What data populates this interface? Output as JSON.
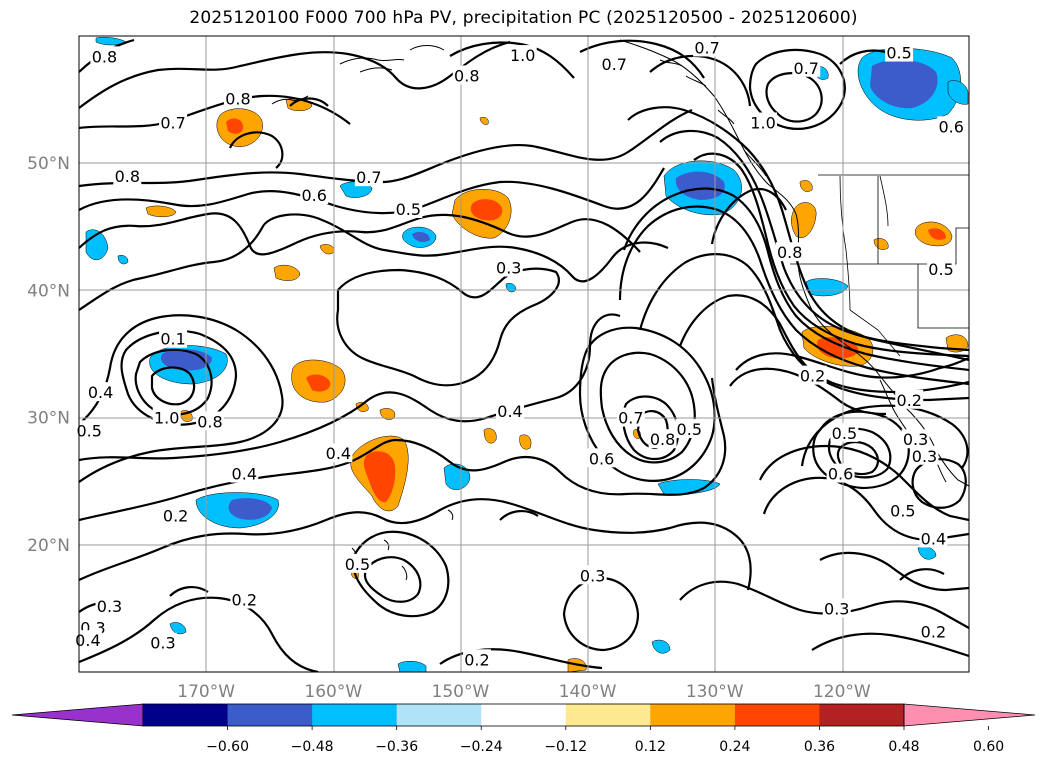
{
  "title": "2025120100 F000 700 hPa PV, precipitation PC (2025120500 - 2025120600)",
  "lat_labels": [
    {
      "text": "50°N",
      "lat": 50
    },
    {
      "text": "40°N",
      "lat": 40
    },
    {
      "text": "30°N",
      "lat": 30
    },
    {
      "text": "20°N",
      "lat": 20
    }
  ],
  "lon_labels": [
    {
      "text": "170°W",
      "lon": -170
    },
    {
      "text": "160°W",
      "lon": -160
    },
    {
      "text": "150°W",
      "lon": -150
    },
    {
      "text": "140°W",
      "lon": -140
    },
    {
      "text": "130°W",
      "lon": -130
    },
    {
      "text": "120°W",
      "lon": -120
    }
  ],
  "colorbar": {
    "ticks": [
      "−0.60",
      "−0.48",
      "−0.36",
      "−0.24",
      "−0.12",
      "0.12",
      "0.24",
      "0.36",
      "0.48",
      "0.60"
    ],
    "colors": [
      "#9932cc",
      "#00008b",
      "#3d5ccc",
      "#00bfff",
      "#aee3f8",
      "#ffffff",
      "#fde98f",
      "#ffa500",
      "#ff4500",
      "#b22222",
      "#ff8fb1"
    ]
  },
  "contour_labels": [
    {
      "text": "0.8",
      "lon": -178,
      "lat": 58.4
    },
    {
      "text": "0.8",
      "lon": -167.5,
      "lat": 55.1
    },
    {
      "text": "0.7",
      "lon": -172.6,
      "lat": 53.2
    },
    {
      "text": "0.8",
      "lon": -176.2,
      "lat": 49.0
    },
    {
      "text": "0.7",
      "lon": -157.2,
      "lat": 48.9
    },
    {
      "text": "0.6",
      "lon": -161.5,
      "lat": 47.5
    },
    {
      "text": "0.5",
      "lon": -154.1,
      "lat": 46.4
    },
    {
      "text": "0.8",
      "lon": -149.5,
      "lat": 56.9
    },
    {
      "text": "1.0",
      "lon": -145.1,
      "lat": 58.5
    },
    {
      "text": "0.7",
      "lon": -137.9,
      "lat": 57.8
    },
    {
      "text": "0.7",
      "lon": -130.6,
      "lat": 59.1
    },
    {
      "text": "0.7",
      "lon": -122.8,
      "lat": 57.5
    },
    {
      "text": "1.0",
      "lon": -126.2,
      "lat": 53.2
    },
    {
      "text": "0.5",
      "lon": -115.5,
      "lat": 58.7
    },
    {
      "text": "0.6",
      "lon": -111.4,
      "lat": 52.9
    },
    {
      "text": "0.8",
      "lon": -124.1,
      "lat": 43.0
    },
    {
      "text": "0.5",
      "lon": -112.2,
      "lat": 41.7
    },
    {
      "text": "0.3",
      "lon": -146.2,
      "lat": 41.8
    },
    {
      "text": "0.1",
      "lon": -172.6,
      "lat": 36.2
    },
    {
      "text": "0.4",
      "lon": -178.3,
      "lat": 32.0
    },
    {
      "text": "0.5",
      "lon": -179.2,
      "lat": 29.0
    },
    {
      "text": "1.0",
      "lon": -173.1,
      "lat": 30.0
    },
    {
      "text": "0.8",
      "lon": -169.7,
      "lat": 29.7
    },
    {
      "text": "0.4",
      "lon": -167.0,
      "lat": 25.6
    },
    {
      "text": "0.2",
      "lon": -172.4,
      "lat": 22.3
    },
    {
      "text": "0.4",
      "lon": -159.6,
      "lat": 27.2
    },
    {
      "text": "0.4",
      "lon": -146.1,
      "lat": 30.5
    },
    {
      "text": "0.7",
      "lon": -136.6,
      "lat": 30.0
    },
    {
      "text": "0.8",
      "lon": -134.1,
      "lat": 28.3
    },
    {
      "text": "0.6",
      "lon": -138.9,
      "lat": 26.8
    },
    {
      "text": "0.5",
      "lon": -132.0,
      "lat": 29.1
    },
    {
      "text": "0.2",
      "lon": -122.3,
      "lat": 33.3
    },
    {
      "text": "0.5",
      "lon": -119.8,
      "lat": 28.8
    },
    {
      "text": "0.6",
      "lon": -120.1,
      "lat": 25.6
    },
    {
      "text": "0.2",
      "lon": -114.7,
      "lat": 31.4
    },
    {
      "text": "0.3",
      "lon": -114.2,
      "lat": 28.3
    },
    {
      "text": "0.3",
      "lon": -113.5,
      "lat": 27.0
    },
    {
      "text": "0.5",
      "lon": -115.2,
      "lat": 22.7
    },
    {
      "text": "0.4",
      "lon": -112.8,
      "lat": 20.5
    },
    {
      "text": "0.5",
      "lon": -158.1,
      "lat": 18.5
    },
    {
      "text": "0.3",
      "lon": -139.6,
      "lat": 17.6
    },
    {
      "text": "0.2",
      "lon": -167.0,
      "lat": 15.7
    },
    {
      "text": "0.3",
      "lon": -177.6,
      "lat": 15.2
    },
    {
      "text": "0.3",
      "lon": -178.9,
      "lat": 13.5
    },
    {
      "text": "0.3",
      "lon": -120.4,
      "lat": 15.0
    },
    {
      "text": "0.2",
      "lon": -112.8,
      "lat": 13.2
    },
    {
      "text": "0.4",
      "lon": -179.3,
      "lat": 12.5
    },
    {
      "text": "0.3",
      "lon": -173.4,
      "lat": 12.3
    },
    {
      "text": "0.2",
      "lon": -148.7,
      "lat": 11.0
    }
  ]
}
